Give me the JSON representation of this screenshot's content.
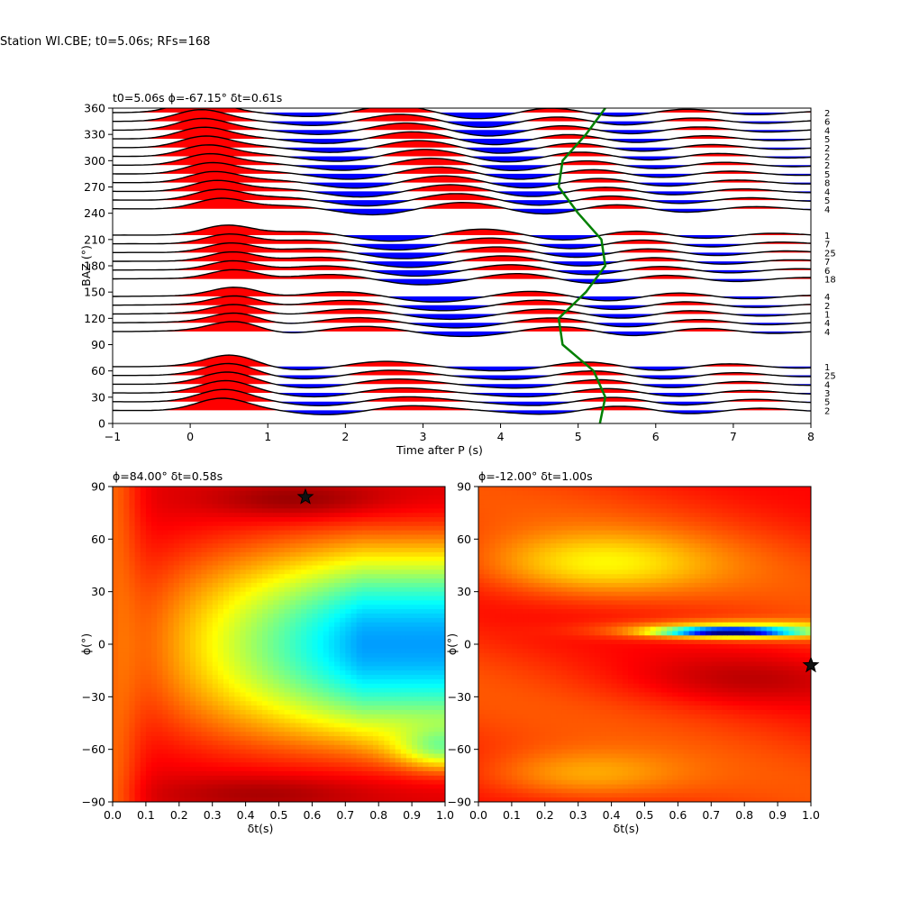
{
  "suptitle": "Station WI.CBE; t0=5.06s; RFs=168",
  "chart_data": [
    {
      "type": "line",
      "title": "t0=5.06s ϕ=-67.15° δt=0.61s",
      "xlabel": "Time after P (s)",
      "ylabel": "BAZ (°)",
      "xlim": [
        -1,
        8
      ],
      "ylim": [
        0,
        360
      ],
      "xticks": [
        "−1",
        "0",
        "1",
        "2",
        "3",
        "4",
        "5",
        "6",
        "7",
        "8"
      ],
      "yticks": [
        "0",
        "30",
        "60",
        "90",
        "120",
        "150",
        "180",
        "210",
        "240",
        "270",
        "300",
        "330",
        "360"
      ],
      "colors": {
        "positive": "#ff0000",
        "negative": "#0000ff",
        "curve": "#008000"
      },
      "bins": [
        {
          "baz": 355,
          "count": "2"
        },
        {
          "baz": 345,
          "count": "6"
        },
        {
          "baz": 335,
          "count": "4"
        },
        {
          "baz": 325,
          "count": "5"
        },
        {
          "baz": 315,
          "count": "2"
        },
        {
          "baz": 305,
          "count": "2"
        },
        {
          "baz": 295,
          "count": "2"
        },
        {
          "baz": 285,
          "count": "5"
        },
        {
          "baz": 275,
          "count": "8"
        },
        {
          "baz": 265,
          "count": "4"
        },
        {
          "baz": 255,
          "count": "5"
        },
        {
          "baz": 245,
          "count": "4"
        },
        {
          "baz": 215,
          "count": "1"
        },
        {
          "baz": 205,
          "count": "7"
        },
        {
          "baz": 195,
          "count": "25"
        },
        {
          "baz": 185,
          "count": "7"
        },
        {
          "baz": 175,
          "count": "6"
        },
        {
          "baz": 165,
          "count": "18"
        },
        {
          "baz": 145,
          "count": "4"
        },
        {
          "baz": 135,
          "count": "2"
        },
        {
          "baz": 125,
          "count": "1"
        },
        {
          "baz": 115,
          "count": "4"
        },
        {
          "baz": 105,
          "count": "4"
        },
        {
          "baz": 65,
          "count": "1"
        },
        {
          "baz": 55,
          "count": "25"
        },
        {
          "baz": 45,
          "count": "4"
        },
        {
          "baz": 35,
          "count": "3"
        },
        {
          "baz": 25,
          "count": "5"
        },
        {
          "baz": 15,
          "count": "2"
        }
      ],
      "correction_curve": {
        "t0": 5.06,
        "dt": 0.61,
        "points": [
          [
            5.28,
            0
          ],
          [
            5.35,
            30
          ],
          [
            5.2,
            60
          ],
          [
            4.8,
            90
          ],
          [
            4.75,
            120
          ],
          [
            5.1,
            150
          ],
          [
            5.35,
            180
          ],
          [
            5.3,
            210
          ],
          [
            5.0,
            240
          ],
          [
            4.75,
            270
          ],
          [
            4.8,
            300
          ],
          [
            5.1,
            330
          ],
          [
            5.35,
            360
          ]
        ]
      }
    },
    {
      "type": "heatmap",
      "title": "ϕ=84.00° δt=0.58s",
      "xlabel": "δt(s)",
      "ylabel": "ϕ(°)",
      "xlim": [
        0,
        1
      ],
      "ylim": [
        -90,
        90
      ],
      "xticks": [
        "0.0",
        "0.1",
        "0.2",
        "0.3",
        "0.4",
        "0.5",
        "0.6",
        "0.7",
        "0.8",
        "0.9",
        "1.0"
      ],
      "yticks": [
        "−90",
        "−60",
        "−30",
        "0",
        "30",
        "60",
        "90"
      ],
      "colormap": "jet",
      "best": {
        "dt": 0.58,
        "phi": 84
      }
    },
    {
      "type": "heatmap",
      "title": "ϕ=-12.00° δt=1.00s",
      "xlabel": "δt(s)",
      "ylabel": "ϕ(°)",
      "xlim": [
        0,
        1
      ],
      "ylim": [
        -90,
        90
      ],
      "xticks": [
        "0.0",
        "0.1",
        "0.2",
        "0.3",
        "0.4",
        "0.5",
        "0.6",
        "0.7",
        "0.8",
        "0.9",
        "1.0"
      ],
      "yticks": [
        "−90",
        "−60",
        "−30",
        "0",
        "30",
        "60",
        "90"
      ],
      "colormap": "jet",
      "best": {
        "dt": 1.0,
        "phi": -12
      }
    }
  ]
}
